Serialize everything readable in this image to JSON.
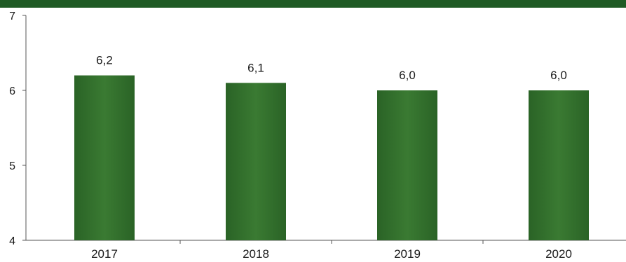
{
  "chart_data": {
    "type": "bar",
    "title": "",
    "xlabel": "",
    "ylabel": "",
    "categories": [
      "2017",
      "2018",
      "2019",
      "2020"
    ],
    "values": [
      6.2,
      6.1,
      6.0,
      6.0
    ],
    "value_labels": [
      "6,2",
      "6,1",
      "6,0",
      "6,0"
    ],
    "ylim": [
      4,
      7
    ],
    "yticks": [
      4,
      5,
      6,
      7
    ],
    "ytick_labels": [
      "4",
      "5",
      "6",
      "7"
    ],
    "grid": false,
    "legend": "none",
    "bar_color": "#2e6b2a",
    "header_color": "#1f5a24"
  }
}
